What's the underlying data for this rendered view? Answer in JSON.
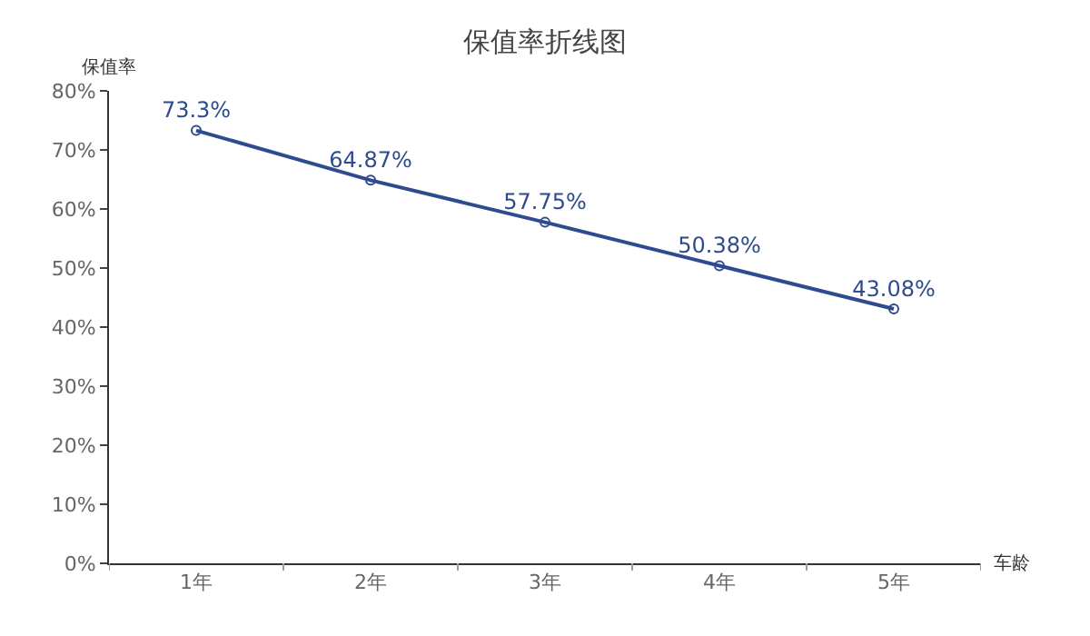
{
  "chart_data": {
    "type": "line",
    "title": "保值率折线图",
    "xlabel": "车龄",
    "ylabel": "保值率",
    "categories": [
      "1年",
      "2年",
      "3年",
      "4年",
      "5年"
    ],
    "series": [
      {
        "color": "#2f4b8f",
        "values": [
          73.3,
          64.87,
          57.75,
          50.38,
          43.08
        ],
        "value_labels": [
          "73.3%",
          "64.87%",
          "57.75%",
          "50.38%",
          "43.08%"
        ]
      }
    ],
    "ylim": [
      0,
      80
    ],
    "yticks": [
      {
        "value": 0,
        "label": "0%"
      },
      {
        "value": 10,
        "label": "10%"
      },
      {
        "value": 20,
        "label": "20%"
      },
      {
        "value": 30,
        "label": "30%"
      },
      {
        "value": 40,
        "label": "40%"
      },
      {
        "value": 50,
        "label": "50%"
      },
      {
        "value": 60,
        "label": "60%"
      },
      {
        "value": 70,
        "label": "70%"
      },
      {
        "value": 80,
        "label": "80%"
      }
    ],
    "marker": "circle",
    "line_style": "solid"
  }
}
